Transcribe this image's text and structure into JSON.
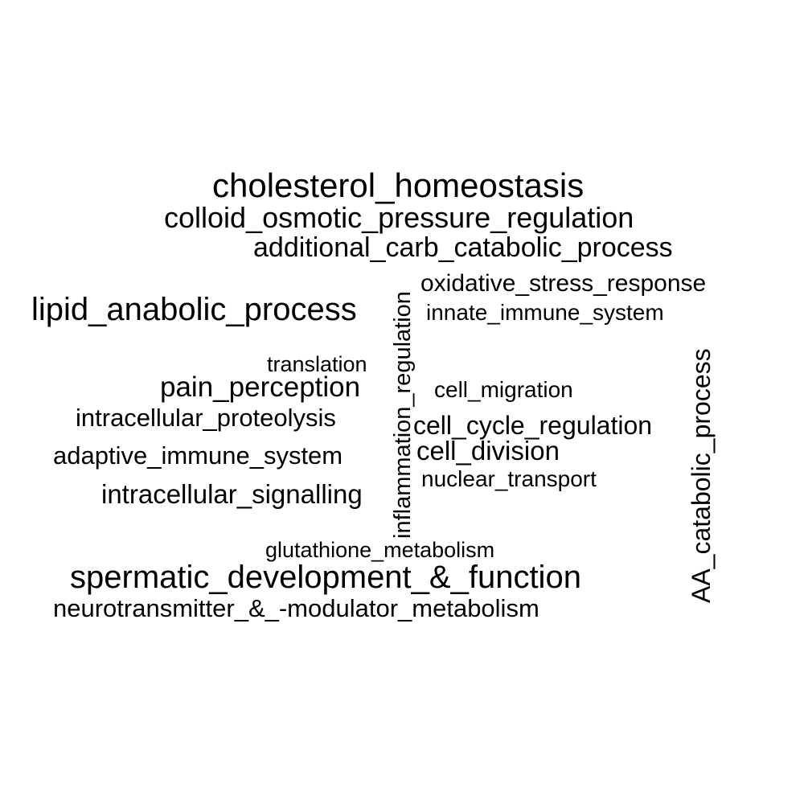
{
  "words": {
    "cholesterol_homeostasis": "cholesterol_homeostasis",
    "colloid_osmotic_pressure_regulation": "colloid_osmotic_pressure_regulation",
    "additional_carb_catabolic_process": "additional_carb_catabolic_process",
    "oxidative_stress_response": "oxidative_stress_response",
    "lipid_anabolic_process": "lipid_anabolic_process",
    "innate_immune_system": "innate_immune_system",
    "translation": "translation",
    "pain_perception": "pain_perception",
    "cell_migration": "cell_migration",
    "intracellular_proteolysis": "intracellular_proteolysis",
    "cell_cycle_regulation": "cell_cycle_regulation",
    "cell_division": "cell_division",
    "adaptive_immune_system": "adaptive_immune_system",
    "nuclear_transport": "nuclear_transport",
    "intracellular_signalling": "intracellular_signalling",
    "glutathione_metabolism": "glutathione_metabolism",
    "spermatic_development_function": "spermatic_development_&_function",
    "neurotransmitter_modulator_metabolism": "neurotransmitter_&_-modulator_metabolism",
    "inflammation_regulation": "inflammation_regulation",
    "AA_catabolic_process": "AA_catabolic_process"
  },
  "colors": {
    "text": "#000000",
    "background": "#ffffff"
  }
}
